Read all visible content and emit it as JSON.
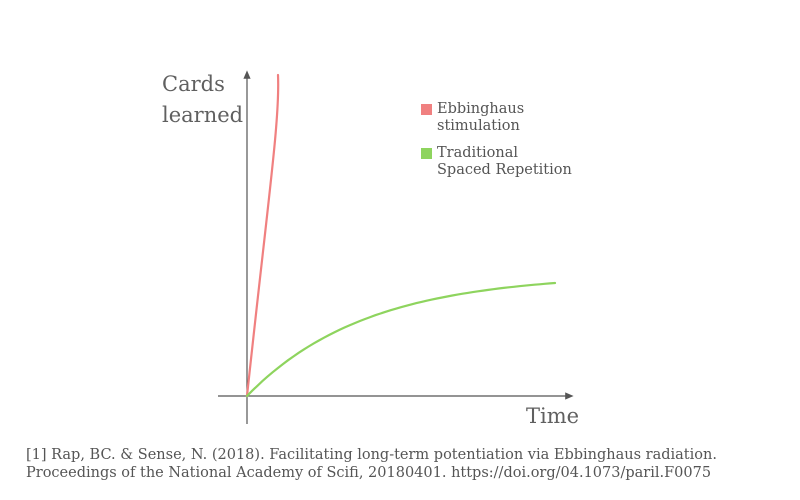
{
  "chart_data": {
    "type": "line",
    "ylabel_lines": [
      "Cards",
      "learned"
    ],
    "xlabel": "Time",
    "grid": false,
    "legend_position": "top-right",
    "series": [
      {
        "name": "Ebbinghaus\nstimulation",
        "color": "#f08080",
        "shape": "near-vertical rise"
      },
      {
        "name": "Traditional\nSpaced Repetition",
        "color": "#8ed45e",
        "shape": "saturating rise"
      }
    ]
  },
  "citation": {
    "line1": "[1] Rap, BC. & Sense, N. (2018). Facilitating long-term potentiation via Ebbinghaus radiation.",
    "line2": "Proceedings of the National Academy of Scifi, 20180401. https://doi.org/04.1073/paril.F0075"
  }
}
